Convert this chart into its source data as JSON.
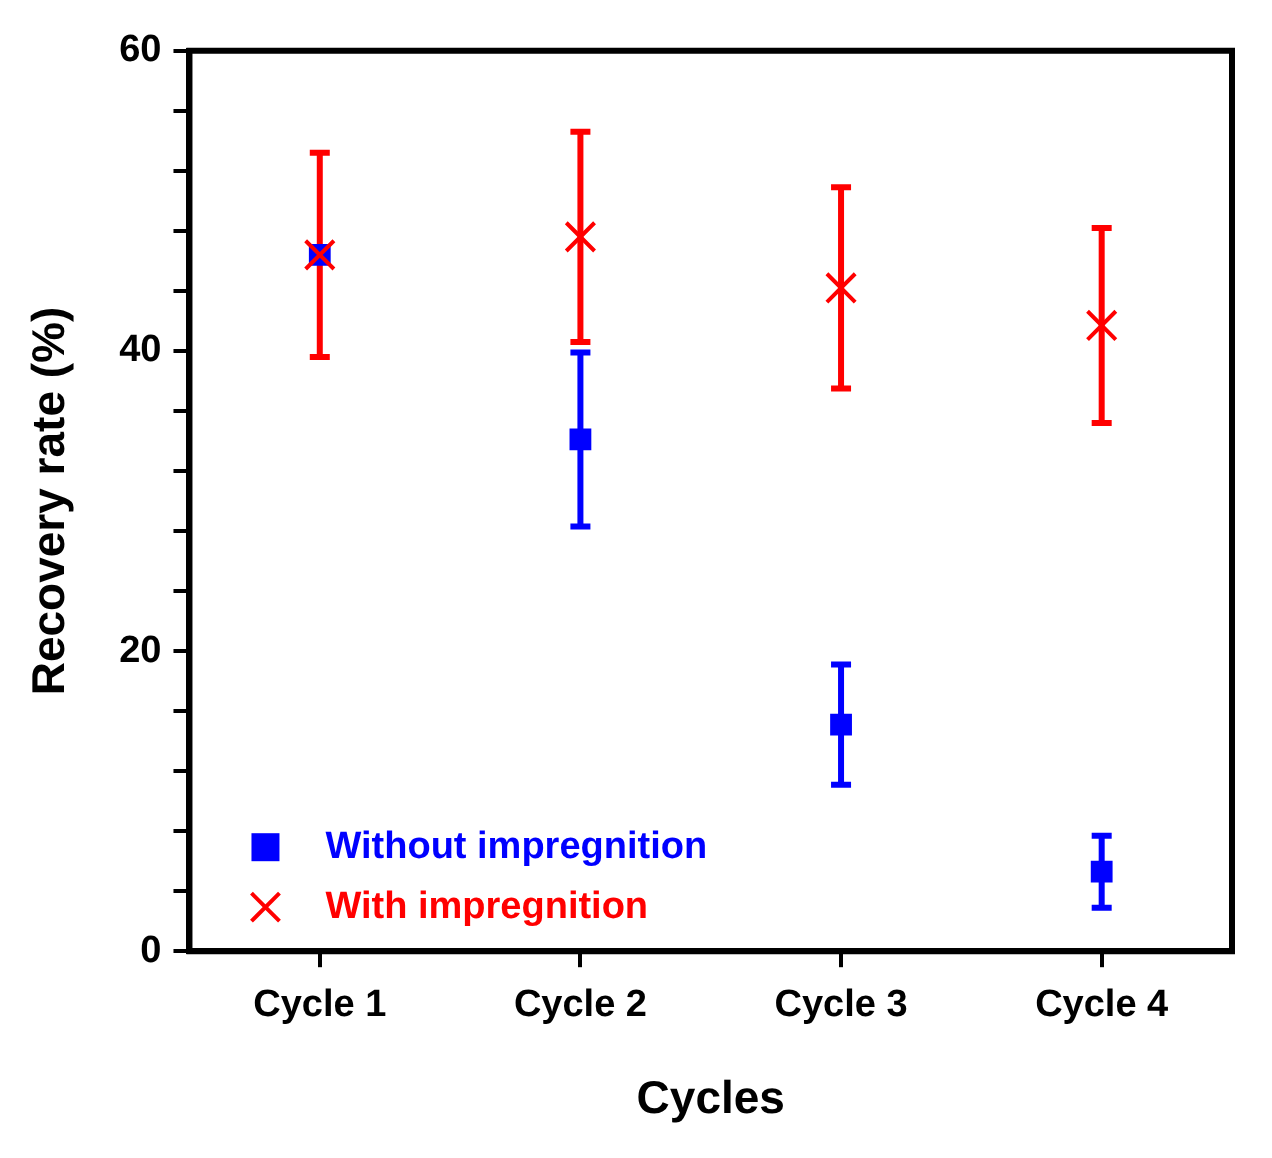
{
  "chart_data": {
    "type": "scatter",
    "xlabel": "Cycles",
    "ylabel": "Recovery rate (%)",
    "categories": [
      "Cycle 1",
      "Cycle 2",
      "Cycle 3",
      "Cycle 4"
    ],
    "series": [
      {
        "name": "Without impregnition",
        "color": "#0000ff",
        "marker": "square",
        "values": [
          46.4,
          34.1,
          15.1,
          5.3
        ],
        "errors": [
          null,
          5.8,
          4.0,
          2.4
        ]
      },
      {
        "name": "With impregnition",
        "color": "#ff0000",
        "marker": "cross",
        "values": [
          46.4,
          47.6,
          44.2,
          41.7
        ],
        "errors": [
          6.8,
          7.0,
          6.7,
          6.5
        ]
      }
    ],
    "ylim": [
      0,
      60
    ],
    "yticks": [
      0,
      {
        "value": 4,
        "label": null
      },
      {
        "value": 8,
        "label": null
      },
      {
        "value": 12,
        "label": null
      },
      {
        "value": 16,
        "label": null
      },
      20,
      {
        "value": 24,
        "label": null
      },
      {
        "value": 28,
        "label": null
      },
      {
        "value": 32,
        "label": null
      },
      {
        "value": 36,
        "label": null
      },
      40,
      {
        "value": 44,
        "label": null
      },
      {
        "value": 48,
        "label": null
      },
      {
        "value": 52,
        "label": null
      },
      {
        "value": 56,
        "label": null
      },
      60
    ],
    "grid": false,
    "legend": "bottom left"
  }
}
